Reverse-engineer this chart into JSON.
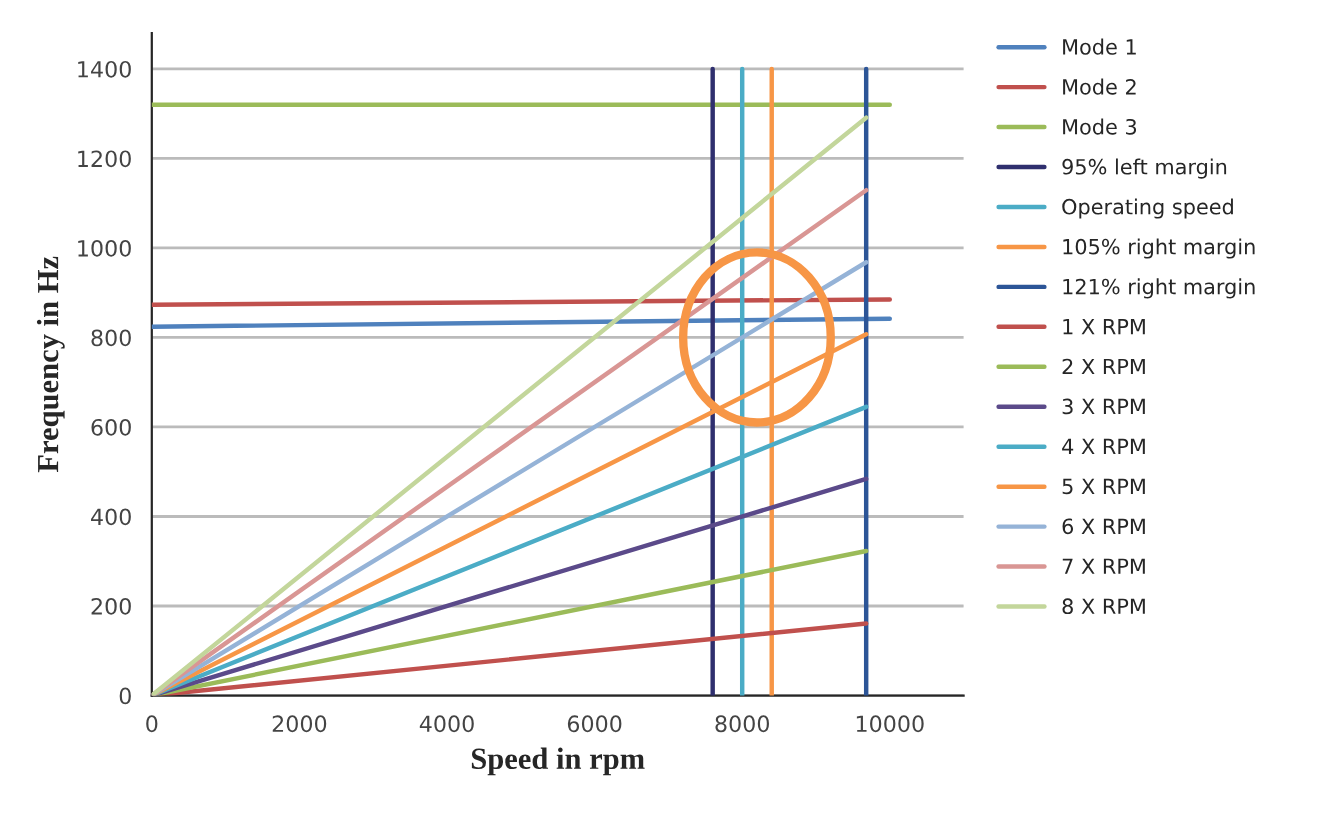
{
  "chart_data": {
    "type": "line",
    "xlabel": "Speed in rpm",
    "ylabel": "Frequency in Hz",
    "xlim": [
      0,
      11000
    ],
    "xticks": [
      0,
      2000,
      4000,
      6000,
      8000,
      10000
    ],
    "ylim": [
      0,
      1480
    ],
    "yticks": [
      0,
      200,
      400,
      600,
      800,
      1000,
      1200,
      1400
    ],
    "grid": "y",
    "legend": "right",
    "marker": "none",
    "line_style": "solid",
    "series": [
      {
        "name": "Mode 1",
        "color": "#4f81bd",
        "x": [
          0,
          10000
        ],
        "values": [
          824,
          842
        ]
      },
      {
        "name": "Mode 2",
        "color": "#c0504d",
        "x": [
          0,
          10000
        ],
        "values": [
          873,
          885
        ]
      },
      {
        "name": "Mode 3",
        "color": "#9bbb59",
        "x": [
          0,
          10000
        ],
        "values": [
          1320,
          1320
        ]
      },
      {
        "name": "95% left margin",
        "color": "#2f2f6e",
        "x": [
          7600,
          7600
        ],
        "values": [
          0,
          1400
        ]
      },
      {
        "name": "Operating speed",
        "color": "#4bacc6",
        "x": [
          8000,
          8000
        ],
        "values": [
          0,
          1400
        ]
      },
      {
        "name": "105% right margin",
        "color": "#f79646",
        "x": [
          8400,
          8400
        ],
        "values": [
          0,
          1400
        ]
      },
      {
        "name": "121% right margin",
        "color": "#2c5597",
        "x": [
          9680,
          9680
        ],
        "values": [
          0,
          1400
        ]
      },
      {
        "name": "1 X RPM",
        "color": "#c0504d",
        "x": [
          0,
          9680
        ],
        "values": [
          0,
          161
        ]
      },
      {
        "name": "2 X RPM",
        "color": "#9bbb59",
        "x": [
          0,
          9680
        ],
        "values": [
          0,
          323
        ]
      },
      {
        "name": "3 X RPM",
        "color": "#5b4a8a",
        "x": [
          0,
          9680
        ],
        "values": [
          0,
          484
        ]
      },
      {
        "name": "4 X RPM",
        "color": "#4bacc6",
        "x": [
          0,
          9680
        ],
        "values": [
          0,
          645
        ]
      },
      {
        "name": "5 X RPM",
        "color": "#f79646",
        "x": [
          0,
          9680
        ],
        "values": [
          0,
          807
        ]
      },
      {
        "name": "6 X RPM",
        "color": "#95b3d7",
        "x": [
          0,
          9680
        ],
        "values": [
          0,
          968
        ]
      },
      {
        "name": "7 X RPM",
        "color": "#d99694",
        "x": [
          0,
          9680
        ],
        "values": [
          0,
          1129
        ]
      },
      {
        "name": "8 X RPM",
        "color": "#c3d69b",
        "x": [
          0,
          9680
        ],
        "values": [
          0,
          1291
        ]
      }
    ]
  }
}
